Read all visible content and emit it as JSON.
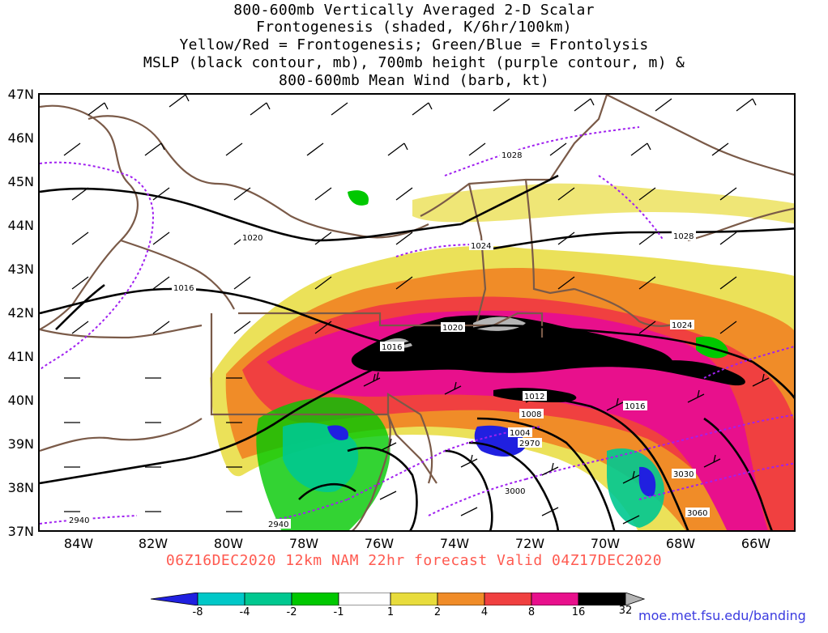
{
  "title": {
    "lines": [
      "800-600mb Vertically Averaged 2-D Scalar",
      "Frontogenesis (shaded, K/6hr/100km)",
      "Yellow/Red = Frontogenesis;  Green/Blue = Frontolysis",
      "MSLP (black contour, mb), 700mb height (purple contour, m) &",
      "800-600mb Mean Wind (barb, kt)"
    ]
  },
  "axes": {
    "lat_labels": [
      "47N",
      "46N",
      "45N",
      "44N",
      "43N",
      "42N",
      "41N",
      "40N",
      "39N",
      "38N",
      "37N"
    ],
    "lon_labels": [
      "84W",
      "82W",
      "80W",
      "78W",
      "76W",
      "74W",
      "72W",
      "70W",
      "68W",
      "66W"
    ]
  },
  "contour_labels": {
    "mslp": [
      "1028",
      "1020",
      "1016",
      "1024",
      "1028",
      "1020",
      "1016",
      "1024",
      "1012",
      "1016",
      "1008",
      "1004"
    ],
    "height_700mb": [
      "2940",
      "2940",
      "2970",
      "3000",
      "3030",
      "3060"
    ]
  },
  "valid_line": "06Z16DEC2020 12km NAM 22hr forecast Valid 04Z17DEC2020",
  "colorbar": {
    "labels": [
      "-8",
      "-4",
      "-2",
      "-1",
      "1",
      "2",
      "4",
      "8",
      "16",
      "32"
    ],
    "colors": [
      "#2020e0",
      "#00c8c8",
      "#00c890",
      "#00c800",
      "#ffffff",
      "#e8dc3c",
      "#f08c28",
      "#f04040",
      "#e8108c",
      "#000000",
      "#b4b4b4"
    ]
  },
  "credit": "moe.met.fsu.edu/banding",
  "colors": {
    "mslp_contour": "#000000",
    "height_contour": "#a020f0",
    "state_border": "#7a5a48",
    "title_valid": "#ff5a50",
    "credit": "#3b3be0"
  }
}
